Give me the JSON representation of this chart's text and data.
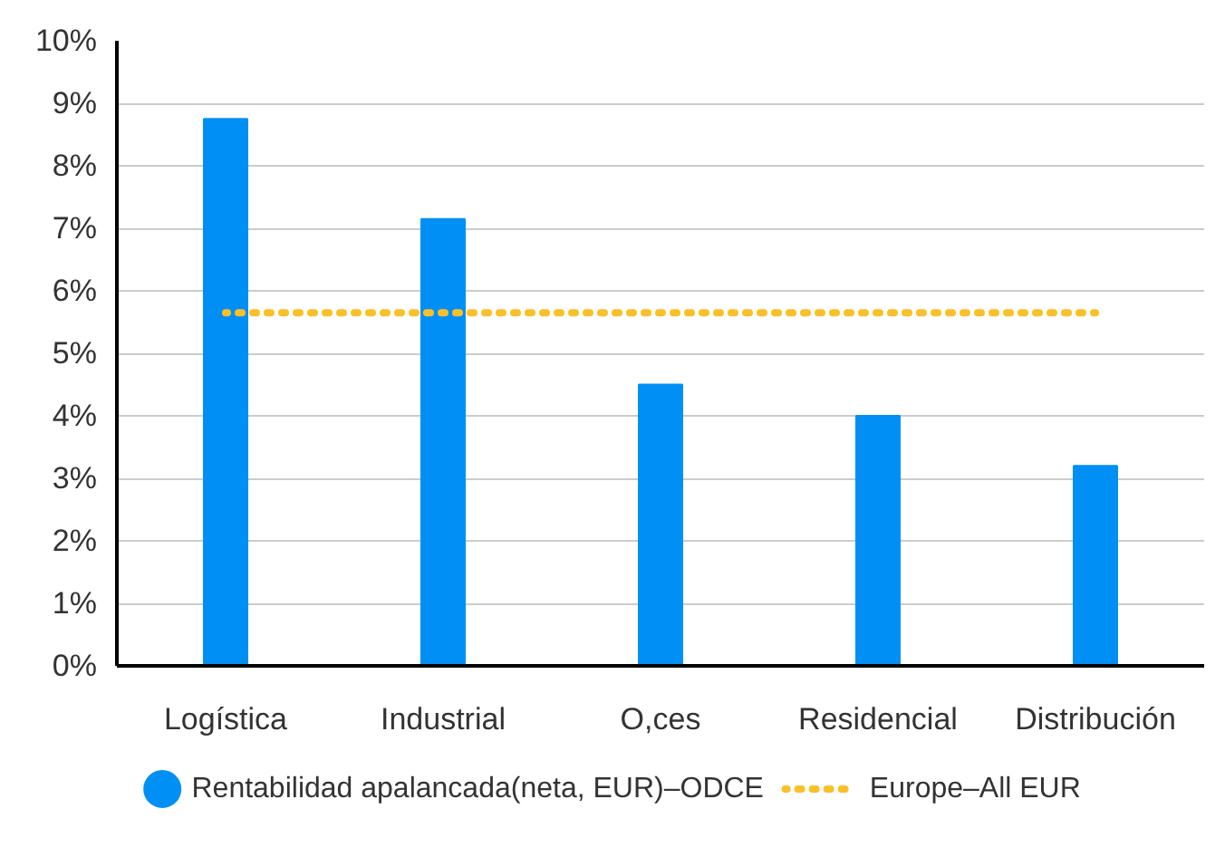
{
  "chart_data": {
    "type": "bar",
    "categories": [
      "Logística",
      "Industrial",
      "O,ces",
      "Residencial",
      "Distribución"
    ],
    "series": [
      {
        "name": "Rentabilidad apalancada(neta, EUR)–ODCE",
        "color": "#0090f5",
        "values": [
          8.75,
          7.15,
          4.5,
          4.0,
          3.2
        ]
      },
      {
        "name": "Europe–All EUR",
        "type": "line",
        "color": "#fbbf2a",
        "line_style": "dotted",
        "values": [
          5.65,
          5.65,
          5.65,
          5.65,
          5.65
        ]
      }
    ],
    "ylim": [
      0,
      10
    ],
    "yticks": [
      {
        "value": 0,
        "label": "0%"
      },
      {
        "value": 1,
        "label": "1%"
      },
      {
        "value": 2,
        "label": "2%"
      },
      {
        "value": 3,
        "label": "3%"
      },
      {
        "value": 4,
        "label": "4%"
      },
      {
        "value": 5,
        "label": "5%"
      },
      {
        "value": 6,
        "label": "6%"
      },
      {
        "value": 7,
        "label": "7%"
      },
      {
        "value": 8,
        "label": "8%"
      },
      {
        "value": 9,
        "label": "9%"
      },
      {
        "value": 10,
        "label": "10%"
      }
    ],
    "grid": "y",
    "legend": "bottom"
  }
}
